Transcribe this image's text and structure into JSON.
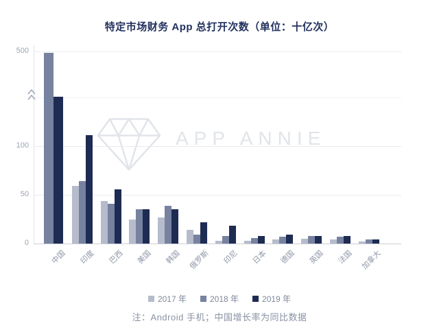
{
  "title": "特定市场财务 App 总打开次数（单位：十亿次）",
  "watermark": "APP ANNIE",
  "note": "注：Android 手机；中国增长率为同比数据",
  "y_axis": {
    "tick_labels": [
      "0",
      "50",
      "100",
      "500"
    ],
    "has_break": true
  },
  "chart_data": {
    "type": "bar",
    "title": "特定市场财务 App 总打开次数（单位：十亿次）",
    "unit": "十亿次 (billions of opens)",
    "categories": [
      "中国",
      "印度",
      "巴西",
      "美国",
      "韩国",
      "俄罗斯",
      "印尼",
      "日本",
      "德国",
      "英国",
      "法国",
      "加拿大"
    ],
    "series": [
      {
        "name": "2017 年",
        "color": "#b6bccb",
        "values": [
          null,
          59,
          44,
          25,
          27,
          14,
          3,
          3,
          4,
          5,
          4,
          2
        ]
      },
      {
        "name": "2018 年",
        "color": "#76829f",
        "values": [
          490,
          64,
          41,
          35,
          39,
          9,
          8,
          6,
          7,
          8,
          7,
          4
        ]
      },
      {
        "name": "2019 年",
        "color": "#1e2b52",
        "values": [
          155,
          111,
          56,
          35,
          35,
          22,
          18,
          8,
          9,
          8,
          8,
          4
        ]
      }
    ],
    "y_ticks": [
      0,
      50,
      100,
      500
    ],
    "axis_break_between": [
      150,
      480
    ],
    "legend_position": "bottom",
    "grid": true,
    "notes": "y-axis has a scale break between 100 and 500; China 2019 bar tops at the break mark; no 2017 bar shown for China"
  }
}
